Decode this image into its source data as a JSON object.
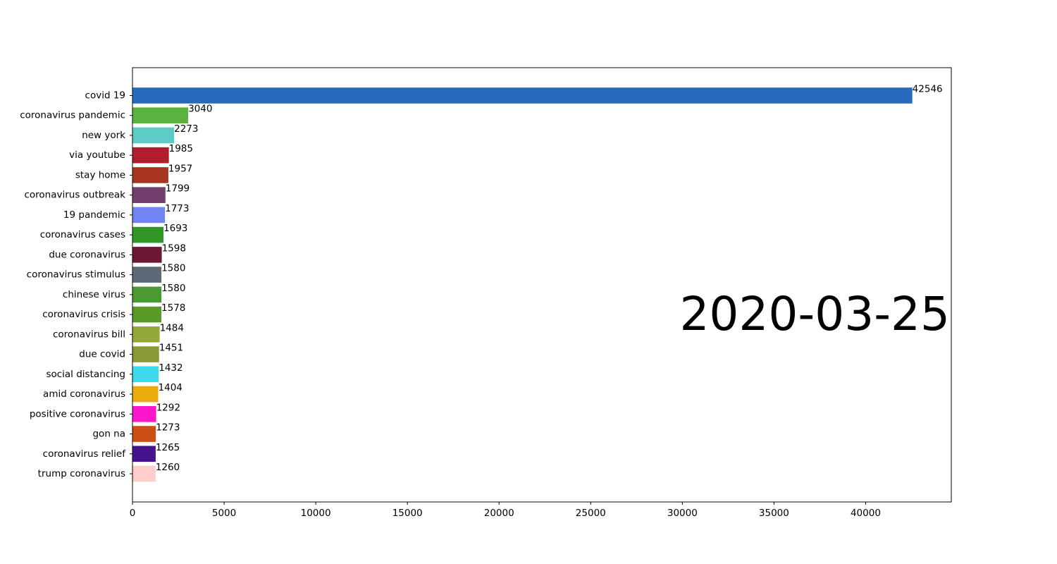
{
  "chart_data": {
    "type": "bar",
    "orientation": "horizontal",
    "title": "",
    "xlabel": "",
    "ylabel": "",
    "xlim": [
      0,
      44673
    ],
    "xticks": [
      0,
      5000,
      10000,
      15000,
      20000,
      25000,
      30000,
      35000,
      40000
    ],
    "grid": false,
    "annotation": "2020-03-25",
    "bars": [
      {
        "label": "covid 19",
        "value": 42546,
        "color": "#276bbc"
      },
      {
        "label": "coronavirus pandemic",
        "value": 3040,
        "color": "#5bb33d"
      },
      {
        "label": "new york",
        "value": 2273,
        "color": "#5ecbc6"
      },
      {
        "label": "via youtube",
        "value": 1985,
        "color": "#b01e2d"
      },
      {
        "label": "stay home",
        "value": 1957,
        "color": "#a6361f"
      },
      {
        "label": "coronavirus outbreak",
        "value": 1799,
        "color": "#733f6b"
      },
      {
        "label": "19 pandemic",
        "value": 1773,
        "color": "#7184f2"
      },
      {
        "label": "coronavirus cases",
        "value": 1693,
        "color": "#309726"
      },
      {
        "label": "due coronavirus",
        "value": 1598,
        "color": "#6b1833"
      },
      {
        "label": "coronavirus stimulus",
        "value": 1580,
        "color": "#5d6977"
      },
      {
        "label": "chinese virus",
        "value": 1580,
        "color": "#4a9a31"
      },
      {
        "label": "coronavirus crisis",
        "value": 1578,
        "color": "#5a9a26"
      },
      {
        "label": "coronavirus bill",
        "value": 1484,
        "color": "#93a938"
      },
      {
        "label": "due covid",
        "value": 1451,
        "color": "#8a9935"
      },
      {
        "label": "social distancing",
        "value": 1432,
        "color": "#3fdaee"
      },
      {
        "label": "amid coronavirus",
        "value": 1404,
        "color": "#e9ab0d"
      },
      {
        "label": "positive coronavirus",
        "value": 1292,
        "color": "#fb17cb"
      },
      {
        "label": "gon na",
        "value": 1273,
        "color": "#cd4f13"
      },
      {
        "label": "coronavirus relief",
        "value": 1265,
        "color": "#45138d"
      },
      {
        "label": "trump coronavirus",
        "value": 1260,
        "color": "#ffcecb"
      }
    ]
  }
}
